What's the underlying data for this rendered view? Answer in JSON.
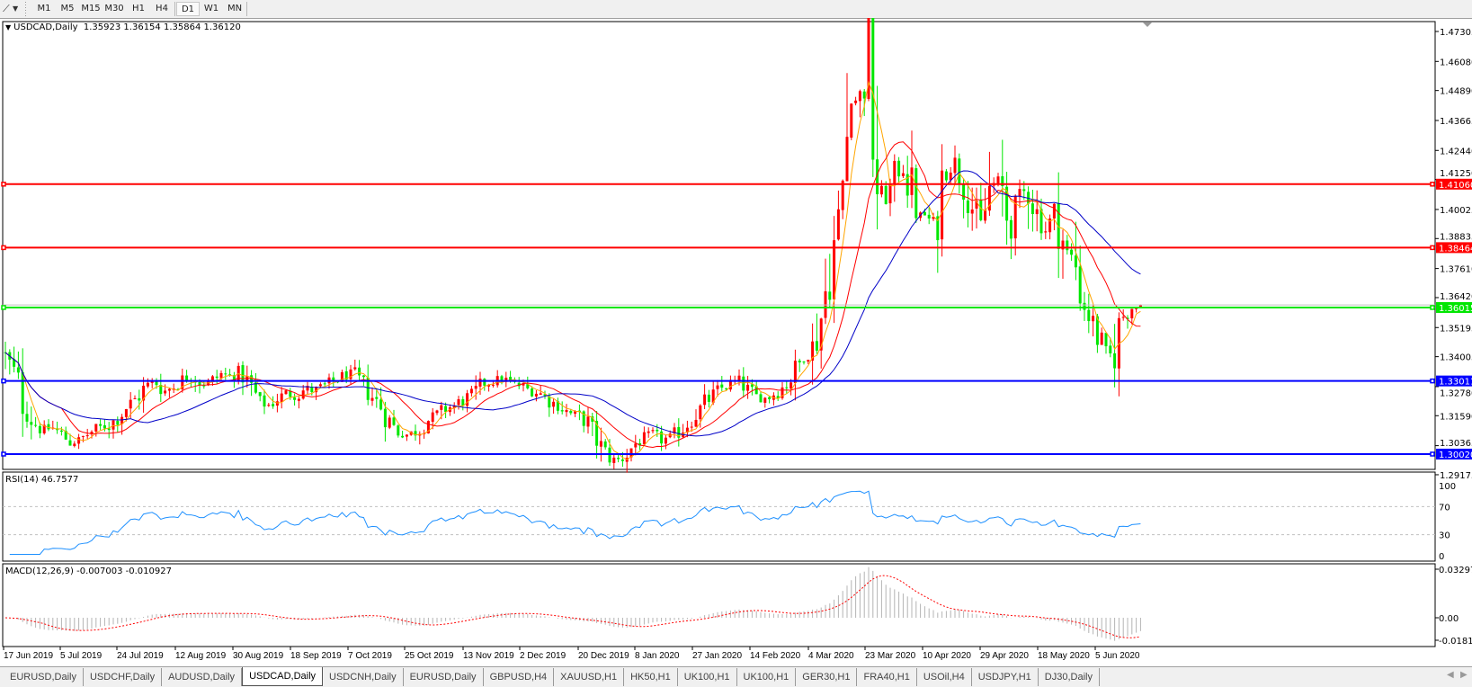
{
  "toolbar": {
    "tool_icon": "line-tool-icon",
    "timeframes": [
      {
        "label": "M1",
        "active": false
      },
      {
        "label": "M5",
        "active": false
      },
      {
        "label": "M15",
        "active": false
      },
      {
        "label": "M30",
        "active": false
      },
      {
        "label": "H1",
        "active": false
      },
      {
        "label": "H4",
        "active": false
      },
      {
        "label": "D1",
        "active": true
      },
      {
        "label": "W1",
        "active": false
      },
      {
        "label": "MN",
        "active": false
      }
    ]
  },
  "chart": {
    "title": "USDCAD,Daily",
    "ohlc": "1.35923 1.36154 1.35864 1.36120",
    "current_price": 1.3612,
    "colors": {
      "bull": "#ff0000",
      "bear": "#00e600",
      "ma_fast": "#ffa500",
      "ma_mid": "#ff0000",
      "ma_slow": "#0000c8",
      "rsi": "#1e90ff",
      "macd_hist": "#b4b4b4",
      "macd_signal": "#ff0000"
    },
    "price_axis_ticks": [
      "1.47305",
      "1.46080",
      "1.44890",
      "1.43665",
      "1.42440",
      "1.41250",
      "1.40025",
      "1.38835",
      "1.37610",
      "1.36420",
      "1.35195",
      "1.34005",
      "1.32780",
      "1.31590",
      "1.30365",
      "1.29175"
    ],
    "horizontal_lines": [
      {
        "price": "1.41060",
        "color": "#ff0000"
      },
      {
        "price": "1.38464",
        "color": "#ff0000"
      },
      {
        "price": "1.36015",
        "color": "#00e600"
      },
      {
        "price": "1.33011",
        "color": "#0000ff"
      },
      {
        "price": "1.30020",
        "color": "#0000ff"
      }
    ],
    "date_labels": [
      "17 Jun 2019",
      "5 Jul 2019",
      "24 Jul 2019",
      "12 Aug 2019",
      "30 Aug 2019",
      "18 Sep 2019",
      "7 Oct 2019",
      "25 Oct 2019",
      "13 Nov 2019",
      "2 Dec 2019",
      "20 Dec 2019",
      "8 Jan 2020",
      "27 Jan 2020",
      "14 Feb 2020",
      "4 Mar 2020",
      "23 Mar 2020",
      "10 Apr 2020",
      "29 Apr 2020",
      "18 May 2020",
      "5 Jun 2020"
    ]
  },
  "chart_data": {
    "type": "candlestick",
    "symbol": "USDCAD",
    "timeframe": "Daily",
    "ylim": [
      1.29175,
      1.47305
    ],
    "close_samples": [
      1.34,
      1.333,
      1.32,
      1.313,
      1.31,
      1.311,
      1.308,
      1.305,
      1.306,
      1.309,
      1.311,
      1.312,
      1.315,
      1.32,
      1.323,
      1.328,
      1.33,
      1.326,
      1.328,
      1.331,
      1.332,
      1.329,
      1.33,
      1.333,
      1.332,
      1.334,
      1.329,
      1.322,
      1.32,
      1.323,
      1.325,
      1.324,
      1.327,
      1.326,
      1.328,
      1.33,
      1.332,
      1.333,
      1.329,
      1.324,
      1.32,
      1.313,
      1.309,
      1.308,
      1.31,
      1.314,
      1.316,
      1.319,
      1.32,
      1.323,
      1.325,
      1.329,
      1.33,
      1.331,
      1.329,
      1.328,
      1.326,
      1.325,
      1.322,
      1.32,
      1.317,
      1.316,
      1.313,
      1.306,
      1.3,
      1.297,
      1.299,
      1.304,
      1.307,
      1.308,
      1.306,
      1.307,
      1.31,
      1.314,
      1.318,
      1.323,
      1.326,
      1.329,
      1.33,
      1.327,
      1.324,
      1.323,
      1.325,
      1.328,
      1.332,
      1.34,
      1.342,
      1.357,
      1.38,
      1.398,
      1.445,
      1.445,
      1.455,
      1.408,
      1.4045,
      1.415,
      1.418,
      1.3977,
      1.398,
      1.393,
      1.415,
      1.42,
      1.412,
      1.402,
      1.392,
      1.41,
      1.412,
      1.393,
      1.4025,
      1.41,
      1.3977,
      1.3915,
      1.4,
      1.383,
      1.3793,
      1.361,
      1.3524,
      1.3425,
      1.34,
      1.356,
      1.36,
      1.3612
    ],
    "rsi": {
      "label": "RSI(14) 46.7577",
      "levels": [
        "100",
        "70",
        "30",
        "0"
      ]
    },
    "macd": {
      "label": "MACD(12,26,9) -0.007003 -0.010927",
      "ticks": [
        "0.032972",
        "0.00",
        "-0.018154"
      ]
    }
  },
  "tabs": [
    {
      "label": "EURUSD,Daily",
      "active": false
    },
    {
      "label": "USDCHF,Daily",
      "active": false
    },
    {
      "label": "AUDUSD,Daily",
      "active": false
    },
    {
      "label": "USDCAD,Daily",
      "active": true
    },
    {
      "label": "USDCNH,Daily",
      "active": false
    },
    {
      "label": "EURUSD,Daily",
      "active": false
    },
    {
      "label": "GBPUSD,H4",
      "active": false
    },
    {
      "label": "XAUUSD,H1",
      "active": false
    },
    {
      "label": "HK50,H1",
      "active": false
    },
    {
      "label": "UK100,H1",
      "active": false
    },
    {
      "label": "UK100,H1",
      "active": false
    },
    {
      "label": "GER30,H1",
      "active": false
    },
    {
      "label": "FRA40,H1",
      "active": false
    },
    {
      "label": "USOil,H4",
      "active": false
    },
    {
      "label": "USDJPY,H1",
      "active": false
    },
    {
      "label": "DJ30,Daily",
      "active": false
    }
  ]
}
